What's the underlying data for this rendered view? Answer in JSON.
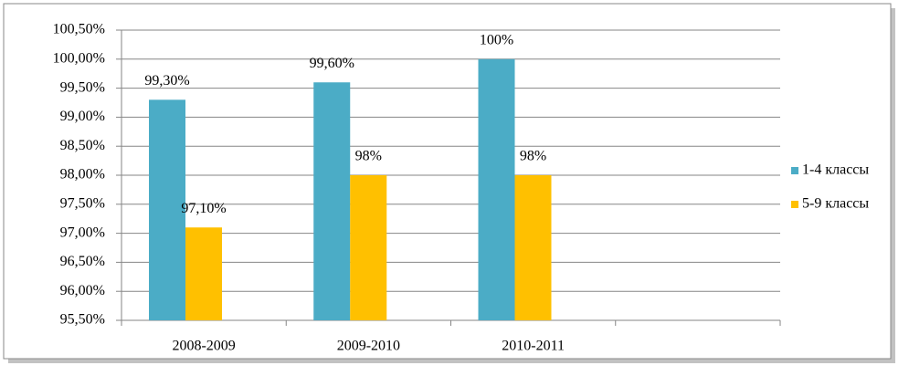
{
  "chart_data": {
    "type": "bar",
    "categories": [
      "2008-2009",
      "2009-2010",
      "2010-2011",
      null
    ],
    "series": [
      {
        "name": "1-4 классы",
        "color": "#4bacc6",
        "values": [
          99.3,
          99.6,
          100,
          null
        ],
        "value_labels": [
          "99,30%",
          "99,60%",
          "100%",
          null
        ]
      },
      {
        "name": "5-9 классы",
        "color": "#ffc000",
        "values": [
          97.1,
          98,
          98,
          null
        ],
        "value_labels": [
          "97,10%",
          "98%",
          "98%",
          null
        ]
      }
    ],
    "ylim": [
      95.5,
      100.5
    ],
    "yticks": [
      {
        "value": 95.5,
        "label": "95,50%"
      },
      {
        "value": 96,
        "label": "96,00%"
      },
      {
        "value": 96.5,
        "label": "96,50%"
      },
      {
        "value": 97,
        "label": "97,00%"
      },
      {
        "value": 97.5,
        "label": "97,50%"
      },
      {
        "value": 98,
        "label": "98,00%"
      },
      {
        "value": 98.5,
        "label": "98,50%"
      },
      {
        "value": 99,
        "label": "99,00%"
      },
      {
        "value": 99.5,
        "label": "99,50%"
      },
      {
        "value": 100,
        "label": "100,00%"
      },
      {
        "value": 100.5,
        "label": "100,50%"
      }
    ],
    "grid": true,
    "legend": "right"
  }
}
